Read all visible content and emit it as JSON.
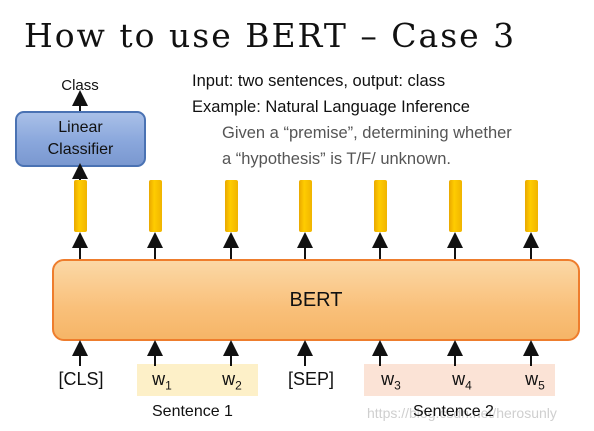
{
  "title": "How to use BERT – Case 3",
  "description": {
    "line1": "Input: two sentences, output: class",
    "line2": "Example: Natural Language Inference",
    "line3": "Given a “premise”, determining whether",
    "line4": "a “hypothesis” is T/F/ unknown."
  },
  "classifier": {
    "output_label": "Class",
    "line1": "Linear",
    "line2": "Classifier"
  },
  "encoder_label": "BERT",
  "tokens": {
    "cls": "[CLS]",
    "w1": "w",
    "w1_sub": "1",
    "w2": "w",
    "w2_sub": "2",
    "sep": "[SEP]",
    "w3": "w",
    "w3_sub": "3",
    "w4": "w",
    "w4_sub": "4",
    "w5": "w",
    "w5_sub": "5"
  },
  "sentence_labels": {
    "sentence1": "Sentence 1",
    "sentence2": "Sentence 2"
  },
  "watermark": "https://blog.csdn.net/herosunly",
  "colors": {
    "classifier_fill": "#8aa7dc",
    "classifier_border": "#4a72b3",
    "bert_fill": "#f9c07a",
    "bert_border": "#ee7d2d",
    "vector_fill": "#ffcc00",
    "sentence1_bg": "#fdf0c8",
    "sentence2_bg": "#fbe3d6"
  }
}
